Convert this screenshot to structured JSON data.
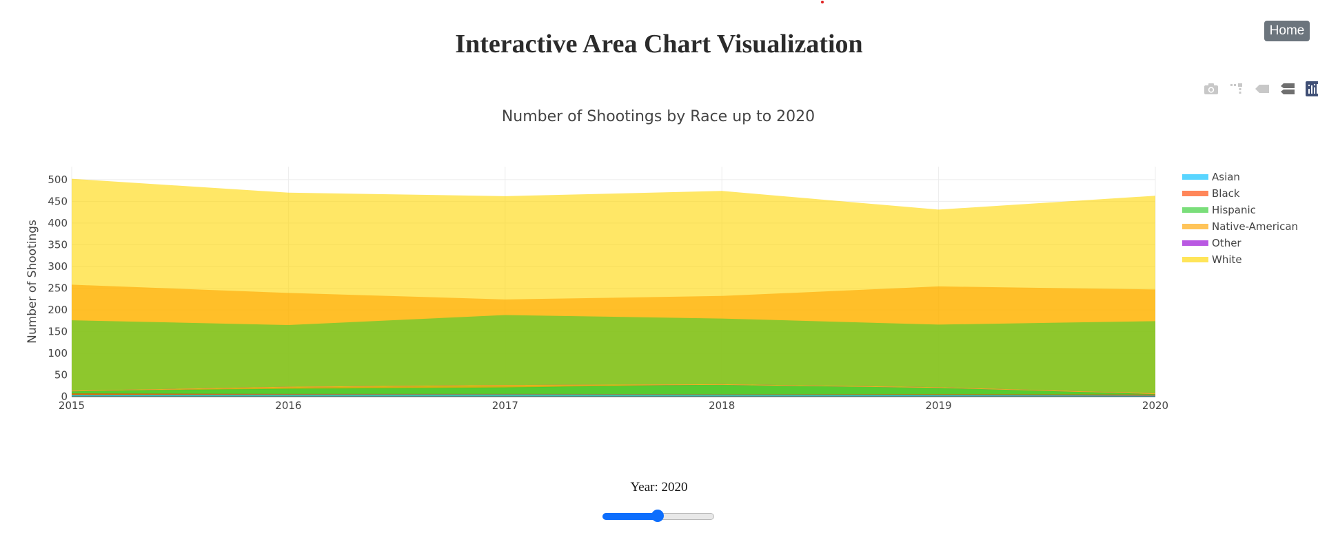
{
  "page": {
    "title": "Interactive Area Chart Visualization",
    "home_label": "Home",
    "year_prefix": "Year: ",
    "year_value": "2020",
    "slider": {
      "min": 2015,
      "max": 2025,
      "value": 2020
    }
  },
  "modebar": {
    "icons": [
      "camera-icon",
      "zoom-icon",
      "hover-closest-icon",
      "hover-compare-icon",
      "plotly-logo-icon"
    ]
  },
  "chart_data": {
    "type": "area",
    "stacked": true,
    "title": "Number of Shootings by Race up to 2020",
    "xlabel": "",
    "ylabel": "Number of Shootings",
    "x": [
      2015,
      2016,
      2017,
      2018,
      2019,
      2020
    ],
    "xlim": [
      2015,
      2020
    ],
    "ylim": [
      0,
      530
    ],
    "yticks": [
      0,
      50,
      100,
      150,
      200,
      250,
      300,
      350,
      400,
      450,
      500
    ],
    "grid": true,
    "legend_position": "right",
    "series": [
      {
        "name": "Asian",
        "color": "#00bfff",
        "values": [
          3,
          4,
          5,
          4,
          3,
          2
        ]
      },
      {
        "name": "Black",
        "color": "#ff4500",
        "values": [
          4,
          2,
          1,
          1,
          2,
          2
        ]
      },
      {
        "name": "Hispanic",
        "color": "#32cd32",
        "values": [
          6,
          12,
          15,
          23,
          16,
          2
        ]
      },
      {
        "name": "Native-American",
        "color": "#ffa500",
        "values": [
          0,
          4,
          5,
          0,
          0,
          1
        ]
      },
      {
        "name": "Other",
        "color": "#9400d3",
        "values": [
          0,
          0,
          0,
          0,
          0,
          0
        ]
      },
      {
        "name": "White",
        "color": "#ffd700",
        "values": [
          0,
          0,
          0,
          0,
          0,
          0
        ]
      }
    ],
    "visible_fills": [
      {
        "name": "Hispanic",
        "values": [
          176,
          165,
          188,
          180,
          166,
          174
        ]
      },
      {
        "name": "Native-American",
        "values": [
          258,
          239,
          224,
          232,
          254,
          247
        ]
      },
      {
        "name": "White",
        "values": [
          502,
          470,
          462,
          474,
          431,
          463
        ]
      }
    ]
  }
}
